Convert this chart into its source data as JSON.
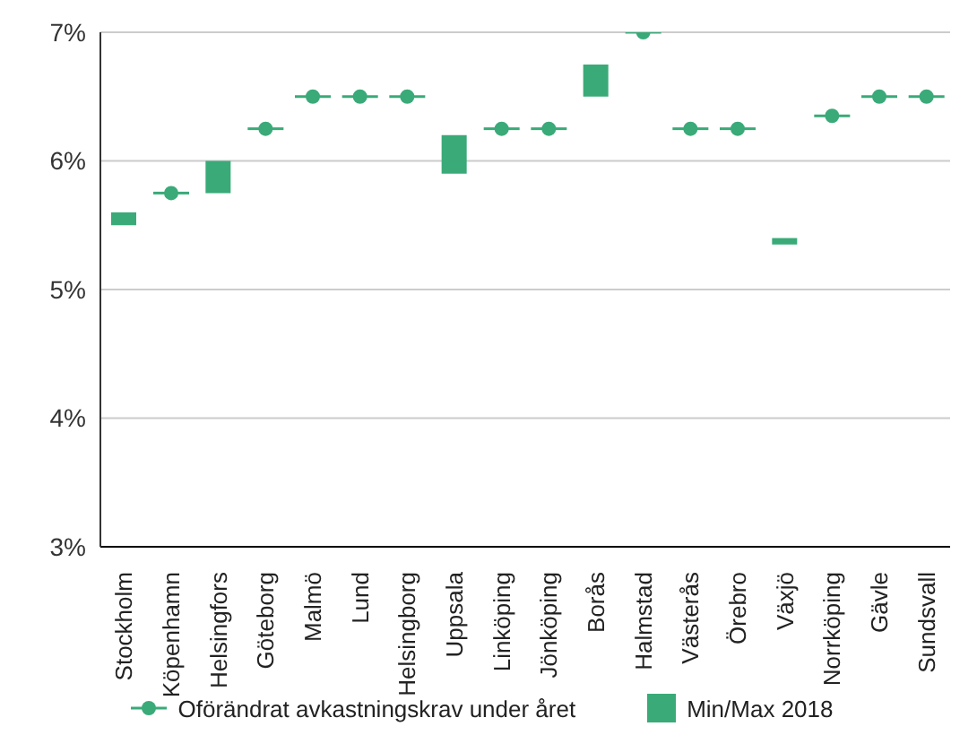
{
  "chart_data": {
    "type": "bar",
    "categories": [
      "Stockholm",
      "Köpenhamn",
      "Helsingfors",
      "Göteborg",
      "Malmö",
      "Lund",
      "Helsingborg",
      "Uppsala",
      "Linköping",
      "Jönköping",
      "Borås",
      "Halmstad",
      "Västerås",
      "Örebro",
      "Växjö",
      "Norrköping",
      "Gävle",
      "Sundsvall"
    ],
    "series": [
      {
        "type": "scatter",
        "name": "Oförändrat avkastningskrav under året",
        "color": "#3aaa78",
        "values": [
          null,
          5.75,
          null,
          6.25,
          6.5,
          6.5,
          6.5,
          null,
          6.25,
          6.25,
          null,
          7.0,
          6.25,
          6.25,
          null,
          6.35,
          6.5,
          6.5
        ]
      },
      {
        "name": "Min/Max 2018",
        "color": "#3aaa78",
        "base": [
          5.5,
          null,
          5.75,
          null,
          null,
          null,
          null,
          5.9,
          null,
          null,
          6.5,
          null,
          null,
          null,
          5.35,
          null,
          null,
          null
        ],
        "values": [
          0.1,
          null,
          0.25,
          null,
          null,
          null,
          null,
          0.3,
          null,
          null,
          0.25,
          null,
          null,
          null,
          0.05,
          null,
          null,
          null
        ]
      }
    ],
    "ylim": [
      3,
      7
    ],
    "yticks": [
      {
        "value": 3,
        "label": "3%"
      },
      {
        "value": 4,
        "label": "4%"
      },
      {
        "value": 5,
        "label": "5%"
      },
      {
        "value": 6,
        "label": "6%"
      },
      {
        "value": 7,
        "label": "7%"
      }
    ],
    "grid": "y",
    "legend": "bottom",
    "marker": "circle"
  }
}
